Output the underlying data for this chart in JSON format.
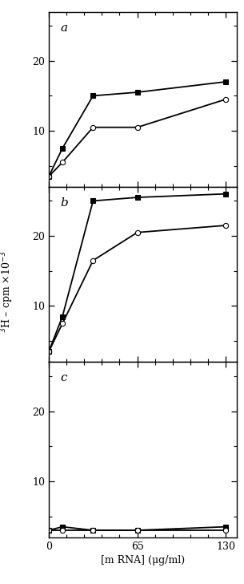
{
  "x": [
    0,
    10,
    32.5,
    65,
    130
  ],
  "panel_a": {
    "label": "a",
    "filled": [
      3.5,
      7.5,
      15.0,
      15.5,
      17.0
    ],
    "open": [
      3.5,
      5.5,
      10.5,
      10.5,
      14.5
    ]
  },
  "panel_b": {
    "label": "b",
    "filled": [
      3.5,
      8.5,
      25.0,
      25.5,
      26.0
    ],
    "open": [
      3.5,
      7.5,
      16.5,
      20.5,
      21.5
    ]
  },
  "panel_c": {
    "label": "c",
    "filled": [
      3.0,
      3.5,
      3.0,
      3.0,
      3.5
    ],
    "open": [
      3.0,
      3.0,
      3.0,
      3.0,
      3.0
    ]
  },
  "ylim": [
    2,
    27
  ],
  "yticks": [
    10,
    20
  ],
  "xticks": [
    0,
    65,
    130
  ],
  "xlabel": "[m RNA] (μg/ml)",
  "ylabel": "$^{3}$H – cpm ×10$^{-3}$",
  "background_color": "#ffffff",
  "line_color": "#000000"
}
